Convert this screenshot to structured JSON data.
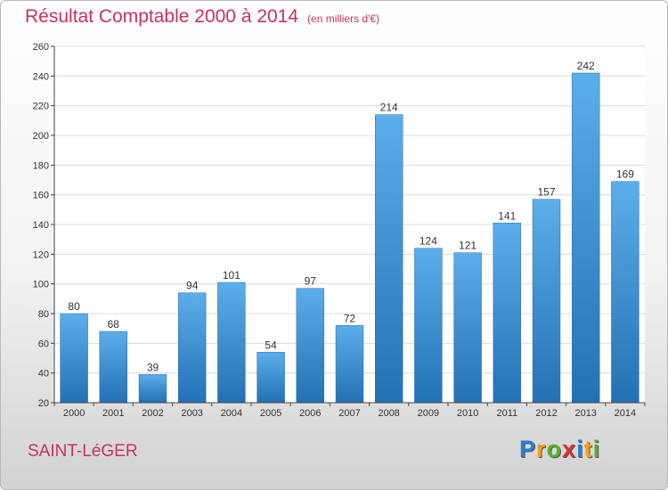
{
  "header": {
    "title": "Résultat Comptable 2000 à 2014",
    "subtitle": "(en milliers d'€)"
  },
  "footer": {
    "commune": "SAINT-LéGER",
    "brand_letters": [
      {
        "ch": "P",
        "color": "#2a7fd0"
      },
      {
        "ch": "r",
        "color": "#f0a020"
      },
      {
        "ch": "o",
        "color": "#58b030"
      },
      {
        "ch": "x",
        "color": "#e03030"
      },
      {
        "ch": "i",
        "color": "#2a7fd0"
      },
      {
        "ch": "t",
        "color": "#f0a020"
      },
      {
        "ch": "i",
        "color": "#58b030"
      }
    ]
  },
  "chart_data": {
    "type": "bar",
    "categories": [
      "2000",
      "2001",
      "2002",
      "2003",
      "2004",
      "2005",
      "2006",
      "2007",
      "2008",
      "2009",
      "2010",
      "2011",
      "2012",
      "2013",
      "2014"
    ],
    "values": [
      80,
      68,
      39,
      94,
      101,
      54,
      97,
      72,
      214,
      124,
      121,
      141,
      157,
      242,
      169
    ],
    "ylim": [
      20,
      260
    ],
    "yticks": [
      20,
      40,
      60,
      80,
      100,
      120,
      140,
      160,
      180,
      200,
      220,
      240,
      260
    ],
    "grid": true,
    "bar_color": "#3a93dc"
  }
}
